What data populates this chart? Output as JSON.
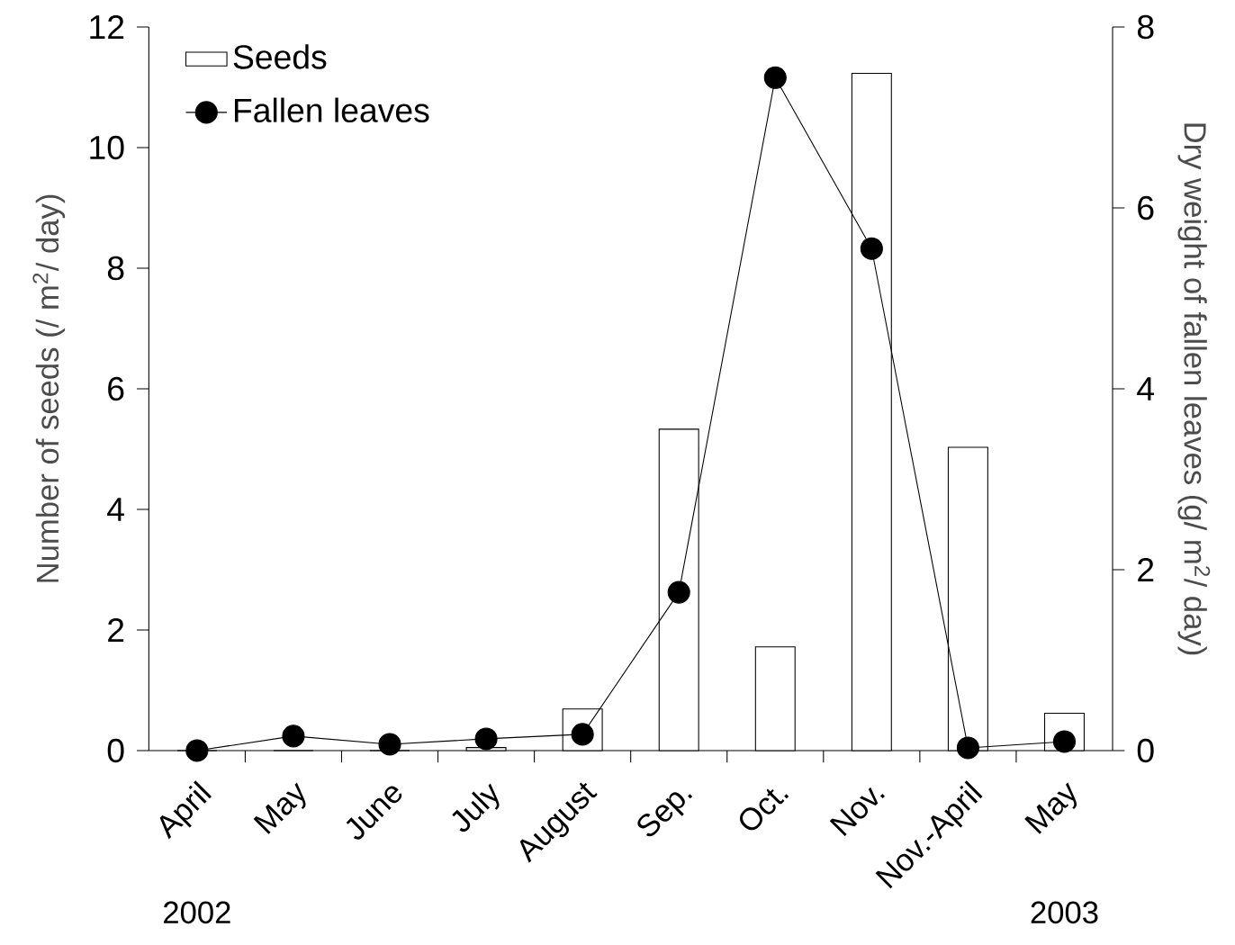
{
  "chart_data": {
    "type": "bar",
    "categories": [
      "April",
      "May",
      "June",
      "July",
      "August",
      "Sep.",
      "Oct.",
      "Nov.",
      "Nov.-April",
      "May"
    ],
    "series": [
      {
        "name": "Seeds",
        "color": "#ffffff",
        "values": [
          0,
          0,
          0,
          0.05,
          0.69,
          5.33,
          1.72,
          11.23,
          5.03,
          0.62
        ]
      },
      {
        "name": "Fallen leaves",
        "type": "line",
        "axis": "y2",
        "color": "#000000",
        "values": [
          0,
          0.16,
          0.07,
          0.13,
          0.18,
          1.75,
          7.44,
          5.55,
          0.03,
          0.1
        ]
      }
    ],
    "ylim": [
      0,
      12
    ],
    "yticks": [
      0,
      2,
      4,
      6,
      8,
      10,
      12
    ],
    "y2lim": [
      0,
      8
    ],
    "y2ticks": [
      0,
      2,
      4,
      6,
      8
    ],
    "ylabel": "Number of seeds (/ m$^{2}$/ day)",
    "y2label": "Dry weight of fallen leaves (g/ m$^{2}$/ day)",
    "marker": "circle",
    "legend": "top left",
    "annotations": [
      "2002",
      "2003"
    ]
  }
}
